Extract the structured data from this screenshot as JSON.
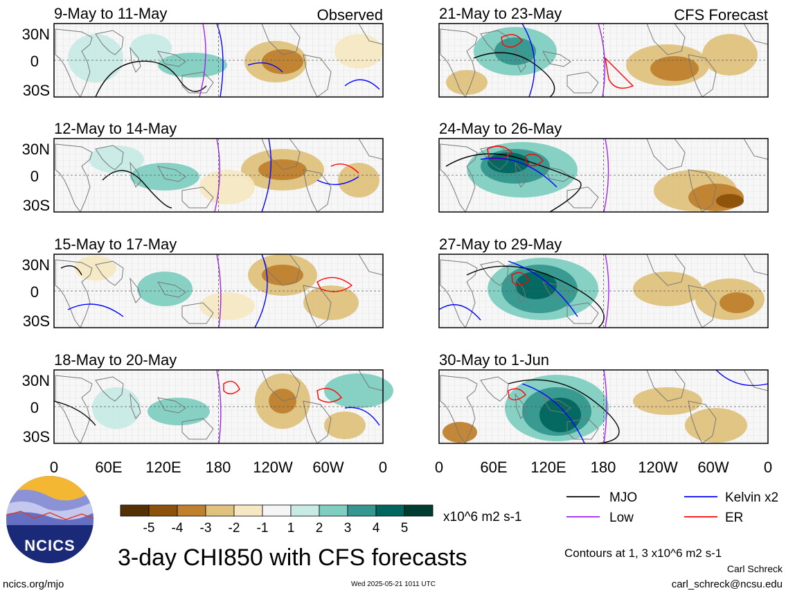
{
  "figure": {
    "title": "3-day CHI850 with CFS forecasts",
    "observed_label": "Observed",
    "forecast_label": "CFS Forecast",
    "footer_site": "ncics.org/mjo",
    "timestamp": "Wed 2025-05-21 1011 UTC",
    "author_name": "Carl Schreck",
    "author_email": "carl_schreck@ncsu.edu",
    "contours_note": "Contours at 1, 3 x10^6 m2 s-1",
    "logo_text": "NCICS"
  },
  "axes": {
    "y_ticks": [
      "30N",
      "0",
      "30S"
    ],
    "x_ticks": [
      "0",
      "60E",
      "120E",
      "180",
      "120W",
      "60W",
      "0"
    ]
  },
  "panels": [
    {
      "label": "9-May to 11-May",
      "type": "observed"
    },
    {
      "label": "12-May to 14-May",
      "type": "observed"
    },
    {
      "label": "15-May to 17-May",
      "type": "observed"
    },
    {
      "label": "18-May to 20-May",
      "type": "observed"
    },
    {
      "label": "21-May to 23-May",
      "type": "forecast"
    },
    {
      "label": "24-May to 26-May",
      "type": "forecast"
    },
    {
      "label": "27-May to 29-May",
      "type": "forecast"
    },
    {
      "label": "30-May to 1-Jun",
      "type": "forecast"
    }
  ],
  "colorbar": {
    "tick_labels": [
      "-5",
      "-4",
      "-3",
      "-2",
      "-1",
      "1",
      "2",
      "3",
      "4",
      "5"
    ],
    "units": "x10^6 m2 s-1",
    "colors": [
      "#543005",
      "#8c510a",
      "#bf812d",
      "#dfc27d",
      "#f6e8c3",
      "#f5f5f5",
      "#c7eae5",
      "#80cdc1",
      "#35978f",
      "#01665e",
      "#003c30"
    ]
  },
  "legend": [
    {
      "label": "MJO",
      "color": "#000000"
    },
    {
      "label": "Kelvin x2",
      "color": "#0000ff"
    },
    {
      "label": "Low",
      "color": "#a020f0"
    },
    {
      "label": "ER",
      "color": "#ff0000"
    }
  ]
}
